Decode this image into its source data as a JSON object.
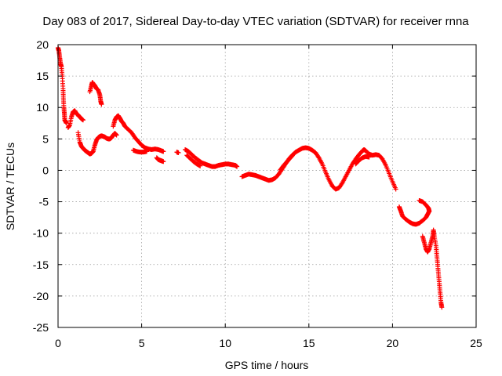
{
  "chart_data": {
    "type": "scatter",
    "title": "Day 083 of 2017, Sidereal Day-to-day VTEC variation (SDTVAR) for receiver rnna",
    "xlabel": "GPS time / hours",
    "ylabel": "SDTVAR / TECUs",
    "xlim": [
      0,
      25
    ],
    "ylim": [
      -25,
      20
    ],
    "xticks": [
      0,
      5,
      10,
      15,
      20,
      25
    ],
    "yticks": [
      -25,
      -20,
      -15,
      -10,
      -5,
      0,
      5,
      10,
      15,
      20
    ],
    "xtick_labels": [
      "0",
      "5",
      "10",
      "15",
      "20",
      "25"
    ],
    "ytick_labels": [
      "-25",
      "-20",
      "-15",
      "-10",
      "-5",
      "0",
      "5",
      "10",
      "15",
      "20"
    ],
    "grid": true,
    "marker": "+",
    "color": "#ff0000",
    "series": [
      {
        "name": "rnna",
        "segments": [
          [
            [
              0.0,
              19.5
            ],
            [
              0.05,
              19.0
            ],
            [
              0.1,
              18.0
            ],
            [
              0.15,
              17.0
            ],
            [
              0.2,
              16.5
            ],
            [
              0.25,
              15.0
            ],
            [
              0.3,
              13.0
            ],
            [
              0.32,
              11.5
            ],
            [
              0.35,
              10.0
            ],
            [
              0.38,
              9.0
            ],
            [
              0.4,
              8.0
            ],
            [
              0.45,
              7.8
            ],
            [
              0.5,
              7.5
            ]
          ],
          [
            [
              0.6,
              6.8
            ],
            [
              0.7,
              7.2
            ],
            [
              0.8,
              8.5
            ],
            [
              0.9,
              9.3
            ],
            [
              1.0,
              9.5
            ],
            [
              1.1,
              9.0
            ],
            [
              1.2,
              8.8
            ],
            [
              1.3,
              8.5
            ],
            [
              1.4,
              8.2
            ],
            [
              1.5,
              8.0
            ]
          ],
          [
            [
              1.2,
              6.0
            ],
            [
              1.3,
              4.5
            ],
            [
              1.4,
              3.8
            ],
            [
              1.5,
              3.5
            ],
            [
              1.6,
              3.2
            ],
            [
              1.7,
              3.0
            ],
            [
              1.8,
              2.8
            ],
            [
              1.9,
              2.6
            ],
            [
              2.0,
              2.7
            ],
            [
              2.1,
              3.0
            ],
            [
              2.2,
              4.0
            ],
            [
              2.3,
              4.8
            ],
            [
              2.4,
              5.2
            ],
            [
              2.5,
              5.4
            ],
            [
              2.6,
              5.5
            ],
            [
              2.7,
              5.4
            ],
            [
              2.8,
              5.3
            ],
            [
              2.9,
              5.1
            ],
            [
              3.0,
              5.0
            ],
            [
              3.1,
              5.0
            ],
            [
              3.2,
              5.2
            ],
            [
              3.3,
              5.6
            ],
            [
              3.4,
              5.9
            ],
            [
              3.5,
              5.6
            ]
          ],
          [
            [
              1.9,
              12.5
            ],
            [
              2.0,
              13.5
            ],
            [
              2.05,
              14.0
            ],
            [
              2.1,
              13.8
            ],
            [
              2.2,
              13.5
            ],
            [
              2.3,
              13.0
            ],
            [
              2.4,
              12.8
            ],
            [
              2.5,
              12.0
            ],
            [
              2.55,
              11.0
            ],
            [
              2.6,
              10.5
            ]
          ],
          [
            [
              3.3,
              7.0
            ],
            [
              3.4,
              8.0
            ],
            [
              3.5,
              8.5
            ],
            [
              3.6,
              8.7
            ],
            [
              3.7,
              8.3
            ],
            [
              3.8,
              7.8
            ],
            [
              3.9,
              7.5
            ],
            [
              4.0,
              7.0
            ],
            [
              4.2,
              6.5
            ],
            [
              4.4,
              6.0
            ],
            [
              4.6,
              5.2
            ],
            [
              4.8,
              4.6
            ],
            [
              5.0,
              4.0
            ],
            [
              5.2,
              3.6
            ],
            [
              5.4,
              3.4
            ],
            [
              5.6,
              3.3
            ],
            [
              5.8,
              3.4
            ],
            [
              6.0,
              3.3
            ],
            [
              6.2,
              3.1
            ],
            [
              6.3,
              3.0
            ]
          ],
          [
            [
              4.5,
              3.2
            ],
            [
              4.7,
              3.0
            ],
            [
              4.9,
              2.9
            ],
            [
              5.1,
              2.9
            ],
            [
              5.3,
              3.0
            ]
          ],
          [
            [
              5.9,
              2.0
            ],
            [
              6.0,
              1.7
            ],
            [
              6.1,
              1.6
            ],
            [
              6.2,
              1.5
            ],
            [
              6.3,
              1.4
            ]
          ],
          [
            [
              7.1,
              2.9
            ],
            [
              7.2,
              2.8
            ]
          ],
          [
            [
              7.6,
              3.3
            ],
            [
              7.8,
              3.0
            ],
            [
              8.0,
              2.5
            ],
            [
              8.2,
              2.0
            ],
            [
              8.4,
              1.6
            ],
            [
              8.6,
              1.2
            ],
            [
              8.8,
              1.0
            ],
            [
              9.0,
              0.8
            ],
            [
              9.2,
              0.6
            ],
            [
              9.4,
              0.6
            ],
            [
              9.6,
              0.8
            ],
            [
              9.8,
              0.9
            ],
            [
              10.0,
              1.0
            ],
            [
              10.2,
              1.0
            ],
            [
              10.4,
              0.9
            ],
            [
              10.6,
              0.8
            ],
            [
              10.7,
              0.6
            ]
          ],
          [
            [
              7.7,
              2.4
            ],
            [
              7.9,
              1.9
            ],
            [
              8.1,
              1.4
            ],
            [
              8.3,
              1.0
            ],
            [
              8.5,
              0.7
            ]
          ],
          [
            [
              11.0,
              -1.0
            ],
            [
              11.2,
              -0.8
            ],
            [
              11.4,
              -0.6
            ],
            [
              11.6,
              -0.7
            ],
            [
              11.8,
              -0.8
            ],
            [
              12.0,
              -1.0
            ],
            [
              12.2,
              -1.2
            ],
            [
              12.4,
              -1.4
            ],
            [
              12.6,
              -1.6
            ],
            [
              12.8,
              -1.5
            ],
            [
              13.0,
              -1.2
            ],
            [
              13.2,
              -0.6
            ],
            [
              13.4,
              0.2
            ],
            [
              13.6,
              1.0
            ],
            [
              13.8,
              1.8
            ],
            [
              14.0,
              2.4
            ],
            [
              14.2,
              2.9
            ],
            [
              14.4,
              3.2
            ],
            [
              14.6,
              3.5
            ],
            [
              14.8,
              3.6
            ],
            [
              15.0,
              3.5
            ],
            [
              15.2,
              3.2
            ],
            [
              15.4,
              2.8
            ],
            [
              15.6,
              2.0
            ],
            [
              15.8,
              1.0
            ],
            [
              16.0,
              -0.3
            ],
            [
              16.2,
              -1.5
            ],
            [
              16.4,
              -2.5
            ],
            [
              16.6,
              -3.0
            ],
            [
              16.8,
              -2.8
            ],
            [
              17.0,
              -2.0
            ],
            [
              17.2,
              -1.0
            ],
            [
              17.4,
              0.0
            ],
            [
              17.6,
              1.0
            ],
            [
              17.8,
              1.8
            ],
            [
              18.0,
              2.5
            ],
            [
              18.2,
              3.1
            ],
            [
              18.3,
              3.3
            ],
            [
              18.4,
              3.1
            ],
            [
              18.6,
              2.6
            ],
            [
              18.8,
              2.4
            ],
            [
              19.0,
              2.5
            ],
            [
              19.2,
              2.4
            ],
            [
              19.4,
              1.8
            ],
            [
              19.6,
              0.8
            ],
            [
              19.8,
              -0.5
            ],
            [
              20.0,
              -1.8
            ],
            [
              20.2,
              -3.0
            ]
          ],
          [
            [
              13.3,
              0.1
            ],
            [
              13.5,
              0.8
            ],
            [
              13.7,
              1.4
            ],
            [
              13.9,
              2.0
            ],
            [
              14.1,
              2.6
            ]
          ],
          [
            [
              17.8,
              1.0
            ],
            [
              18.0,
              1.6
            ],
            [
              18.2,
              2.0
            ],
            [
              18.4,
              2.2
            ],
            [
              18.6,
              2.1
            ]
          ],
          [
            [
              20.4,
              -5.8
            ],
            [
              20.5,
              -6.5
            ],
            [
              20.6,
              -7.3
            ],
            [
              20.8,
              -7.8
            ],
            [
              21.0,
              -8.2
            ],
            [
              21.2,
              -8.5
            ],
            [
              21.4,
              -8.6
            ],
            [
              21.6,
              -8.4
            ],
            [
              21.8,
              -8.0
            ],
            [
              22.0,
              -7.5
            ],
            [
              22.1,
              -7.0
            ],
            [
              22.2,
              -6.5
            ],
            [
              22.15,
              -6.0
            ],
            [
              22.0,
              -5.5
            ],
            [
              21.8,
              -5.0
            ],
            [
              21.6,
              -4.8
            ]
          ],
          [
            [
              21.8,
              -10.5
            ],
            [
              21.9,
              -11.5
            ],
            [
              22.0,
              -12.5
            ],
            [
              22.1,
              -13.0
            ],
            [
              22.2,
              -12.5
            ],
            [
              22.3,
              -11.5
            ],
            [
              22.4,
              -10.5
            ],
            [
              22.45,
              -9.5
            ],
            [
              22.5,
              -10.5
            ],
            [
              22.6,
              -12.0
            ],
            [
              22.65,
              -13.5
            ],
            [
              22.7,
              -15.0
            ],
            [
              22.75,
              -16.5
            ],
            [
              22.8,
              -18.0
            ],
            [
              22.85,
              -19.5
            ],
            [
              22.9,
              -21.0
            ],
            [
              22.95,
              -21.8
            ]
          ]
        ]
      }
    ]
  }
}
